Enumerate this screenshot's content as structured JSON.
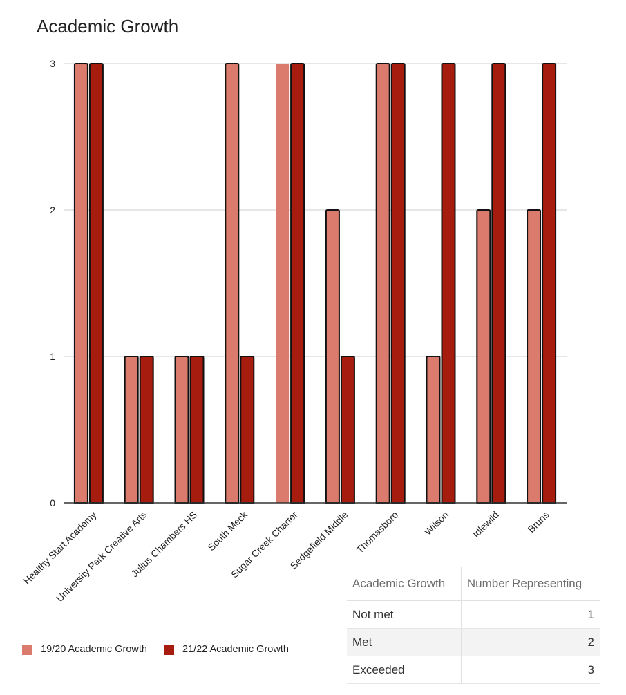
{
  "chart_data": {
    "type": "bar",
    "title": "Academic Growth",
    "xlabel": "",
    "ylabel": "",
    "ylim": [
      0,
      3
    ],
    "yticks": [
      0,
      1,
      2,
      3
    ],
    "categories": [
      "Healthy Start Academy",
      "University Park Creative Arts",
      "Julius Chambers HS",
      "South Meck",
      "Sugar Creek Charter",
      "Sedgefield Middle",
      "Thomasboro",
      "Wilson",
      "Idlewild",
      "Bruns"
    ],
    "series": [
      {
        "name": "19/20 Academic Growth",
        "color": "#db7b6d",
        "values": [
          3,
          1,
          1,
          3,
          3,
          2,
          3,
          1,
          2,
          2
        ]
      },
      {
        "name": "21/22 Academic Growth",
        "color": "#a61c0e",
        "values": [
          3,
          1,
          1,
          1,
          3,
          1,
          3,
          3,
          3,
          3
        ]
      }
    ],
    "legend_position": "bottom-left"
  },
  "key_table": {
    "headers": [
      "Academic Growth",
      "Number Representing"
    ],
    "rows": [
      {
        "label": "Not met",
        "value": "1"
      },
      {
        "label": "Met",
        "value": "2"
      },
      {
        "label": "Exceeded",
        "value": "3"
      }
    ]
  }
}
